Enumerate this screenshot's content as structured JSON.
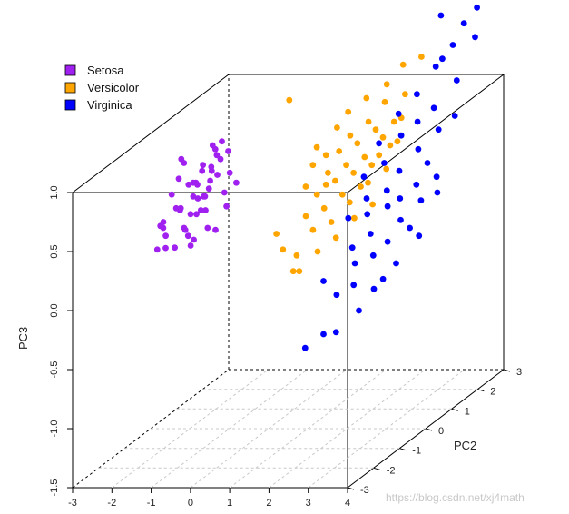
{
  "chart_data": {
    "type": "scatter",
    "projection": "3d",
    "title": "",
    "xlabel": "",
    "ylabel": "PC2",
    "zlabel": "PC3",
    "xlim": [
      -3,
      4
    ],
    "ylim": [
      -3,
      3
    ],
    "zlim": [
      -1.5,
      1.0
    ],
    "x_ticks": [
      "-3",
      "-2",
      "-1",
      "0",
      "1",
      "2",
      "3",
      "4"
    ],
    "y_ticks": [
      "-3",
      "-2",
      "-1",
      "0",
      "1",
      "2",
      "3"
    ],
    "z_ticks": [
      "-1.5",
      "-1.0",
      "-0.5",
      "0.0",
      "0.5",
      "1.0"
    ],
    "legend": [
      {
        "label": "Setosa",
        "color": "#a020f0"
      },
      {
        "label": "Versicolor",
        "color": "#ffa500"
      },
      {
        "label": "Virginica",
        "color": "#0000ff"
      }
    ],
    "series": [
      {
        "name": "Setosa",
        "color": "#a020f0",
        "points": [
          [
            -2.75,
            0.2,
            0.1
          ],
          [
            -2.68,
            0.0,
            0.2
          ],
          [
            -2.62,
            -0.2,
            0.25
          ],
          [
            -2.55,
            0.5,
            0.7
          ],
          [
            -2.5,
            -0.5,
            0.1
          ],
          [
            -2.45,
            0.3,
            0.3
          ],
          [
            -2.42,
            -0.3,
            0.08
          ],
          [
            -2.38,
            0.7,
            0.35
          ],
          [
            -2.35,
            0.1,
            0.6
          ],
          [
            -2.32,
            -0.1,
            0.05
          ],
          [
            -2.3,
            0.4,
            0.5
          ],
          [
            -2.28,
            -0.6,
            0.35
          ],
          [
            -2.25,
            0.2,
            0.15
          ],
          [
            -2.22,
            0.8,
            0.55
          ],
          [
            -2.2,
            -0.4,
            0.55
          ],
          [
            -2.18,
            0.3,
            0.0
          ],
          [
            -2.15,
            0.0,
            0.75
          ],
          [
            -2.12,
            0.6,
            0.25
          ],
          [
            -2.1,
            -0.2,
            0.4
          ],
          [
            -2.08,
            0.9,
            0.45
          ],
          [
            -2.05,
            0.1,
            0.3
          ],
          [
            -2.02,
            -0.5,
            0.45
          ],
          [
            -2.0,
            0.5,
            0.65
          ],
          [
            -1.98,
            0.2,
            0.55
          ],
          [
            -1.95,
            -0.3,
            0.25
          ],
          [
            -1.92,
            0.7,
            0.6
          ],
          [
            -1.9,
            0.0,
            0.1
          ],
          [
            -1.88,
            0.4,
            0.4
          ],
          [
            -1.85,
            -0.1,
            0.6
          ],
          [
            -1.82,
            0.6,
            0.8
          ],
          [
            -1.8,
            0.3,
            0.3
          ],
          [
            -1.78,
            -0.4,
            0.2
          ],
          [
            -1.75,
            0.8,
            0.65
          ],
          [
            -1.72,
            0.1,
            0.45
          ],
          [
            -1.7,
            -0.2,
            0.35
          ],
          [
            -1.68,
            0.5,
            0.1
          ],
          [
            -1.65,
            0.2,
            0.5
          ],
          [
            -1.62,
            0.9,
            0.7
          ],
          [
            -1.6,
            -0.3,
            0.5
          ],
          [
            -1.58,
            0.4,
            0.75
          ],
          [
            -1.55,
            0.0,
            0.2
          ],
          [
            -1.52,
            0.6,
            0.4
          ],
          [
            -1.5,
            0.3,
            0.6
          ],
          [
            -1.48,
            -0.5,
            0.65
          ],
          [
            -1.45,
            0.7,
            0.55
          ],
          [
            -1.42,
            0.1,
            0.85
          ],
          [
            -1.4,
            0.5,
            0.3
          ],
          [
            -1.38,
            -0.1,
            0.7
          ],
          [
            -1.35,
            0.8,
            0.45
          ],
          [
            -1.32,
            0.2,
            0.9
          ]
        ]
      },
      {
        "name": "Versicolor",
        "color": "#ffa500",
        "points": [
          [
            0.2,
            0.5,
            1.2
          ],
          [
            0.4,
            -0.3,
            0.2
          ],
          [
            0.5,
            0.2,
            -0.2
          ],
          [
            0.6,
            0.8,
            0.6
          ],
          [
            0.7,
            -0.5,
            0.1
          ],
          [
            0.75,
            0.3,
            0.5
          ],
          [
            0.8,
            1.0,
            0.4
          ],
          [
            0.85,
            -0.2,
            0.0
          ],
          [
            0.9,
            0.5,
            0.8
          ],
          [
            0.95,
            0.0,
            0.3
          ],
          [
            1.0,
            0.7,
            0.7
          ],
          [
            1.05,
            -0.4,
            -0.1
          ],
          [
            1.1,
            0.2,
            0.45
          ],
          [
            1.15,
            0.9,
            0.9
          ],
          [
            1.2,
            -0.1,
            0.2
          ],
          [
            1.25,
            0.4,
            0.6
          ],
          [
            1.3,
            1.1,
            1.0
          ],
          [
            1.35,
            0.1,
            0.35
          ],
          [
            1.4,
            0.6,
            0.75
          ],
          [
            1.45,
            -0.3,
            0.05
          ],
          [
            1.5,
            0.3,
            0.55
          ],
          [
            1.55,
            0.8,
            0.85
          ],
          [
            1.6,
            0.0,
            0.25
          ],
          [
            1.65,
            0.5,
            0.65
          ],
          [
            1.7,
            1.2,
            1.1
          ],
          [
            1.75,
            0.2,
            0.45
          ],
          [
            1.8,
            0.7,
            0.8
          ],
          [
            1.85,
            -0.2,
            0.15
          ],
          [
            1.9,
            0.4,
            0.6
          ],
          [
            1.95,
            0.9,
            0.95
          ],
          [
            2.0,
            0.1,
            0.4
          ],
          [
            2.05,
            0.6,
            0.7
          ],
          [
            2.1,
            1.3,
            1.05
          ],
          [
            2.15,
            0.3,
            0.5
          ],
          [
            2.2,
            0.8,
            0.9
          ],
          [
            2.25,
            -0.1,
            0.3
          ],
          [
            2.3,
            0.5,
            0.65
          ],
          [
            2.35,
            1.0,
            1.25
          ],
          [
            2.4,
            0.2,
            0.55
          ],
          [
            2.45,
            0.7,
            0.85
          ],
          [
            2.5,
            1.4,
            1.35
          ],
          [
            2.55,
            0.4,
            0.75
          ],
          [
            2.6,
            0.9,
            0.95
          ],
          [
            2.65,
            0.0,
            0.4
          ],
          [
            2.7,
            0.6,
            0.8
          ],
          [
            2.75,
            1.1,
            1.15
          ],
          [
            2.8,
            0.3,
            0.65
          ],
          [
            2.85,
            0.8,
            1.0
          ],
          [
            2.9,
            1.5,
            1.4
          ],
          [
            2.95,
            0.5,
            0.85
          ]
        ]
      },
      {
        "name": "Virginica",
        "color": "#0000ff",
        "points": [
          [
            1.2,
            -0.4,
            -0.75
          ],
          [
            1.4,
            0.0,
            -0.7
          ],
          [
            1.6,
            -0.3,
            -0.2
          ],
          [
            1.7,
            0.5,
            0.2
          ],
          [
            1.8,
            -0.1,
            -0.35
          ],
          [
            1.9,
            0.8,
            0.5
          ],
          [
            2.0,
            0.2,
            0.0
          ],
          [
            2.05,
            -0.5,
            -0.6
          ],
          [
            2.1,
            0.6,
            0.35
          ],
          [
            2.15,
            1.0,
            0.75
          ],
          [
            2.2,
            0.0,
            -0.1
          ],
          [
            2.25,
            0.4,
            0.25
          ],
          [
            2.3,
            -0.2,
            -0.25
          ],
          [
            2.35,
            0.9,
            0.6
          ],
          [
            2.4,
            0.3,
            0.1
          ],
          [
            2.45,
            1.3,
            0.95
          ],
          [
            2.5,
            -0.3,
            -0.45
          ],
          [
            2.55,
            0.7,
            0.4
          ],
          [
            2.6,
            0.1,
            -0.05
          ],
          [
            2.65,
            1.1,
            0.8
          ],
          [
            2.7,
            0.5,
            0.3
          ],
          [
            2.75,
            -0.1,
            -0.3
          ],
          [
            2.8,
            0.8,
            0.55
          ],
          [
            2.85,
            1.4,
            1.1
          ],
          [
            2.9,
            0.2,
            0.05
          ],
          [
            2.95,
            0.6,
            0.35
          ],
          [
            3.0,
            1.2,
            0.9
          ],
          [
            3.05,
            -0.2,
            -0.2
          ],
          [
            3.1,
            0.4,
            0.2
          ],
          [
            3.15,
            1.0,
            0.7
          ],
          [
            3.2,
            1.6,
            1.3
          ],
          [
            3.25,
            0.0,
            -0.1
          ],
          [
            3.3,
            0.7,
            0.45
          ],
          [
            3.35,
            1.3,
            1.0
          ],
          [
            3.4,
            0.3,
            0.15
          ],
          [
            3.45,
            0.9,
            0.6
          ],
          [
            3.5,
            1.8,
            1.45
          ],
          [
            3.55,
            0.5,
            0.35
          ],
          [
            3.6,
            1.1,
            0.85
          ],
          [
            3.65,
            2.0,
            1.6
          ],
          [
            3.7,
            0.2,
            0.1
          ],
          [
            3.75,
            0.8,
            0.5
          ],
          [
            3.8,
            1.5,
            1.2
          ],
          [
            3.85,
            2.2,
            1.7
          ],
          [
            3.9,
            0.6,
            0.4
          ],
          [
            3.95,
            1.2,
            0.95
          ],
          [
            4.0,
            1.9,
            1.5
          ],
          [
            3.6,
            2.3,
            1.8
          ],
          [
            3.3,
            1.7,
            1.35
          ],
          [
            3.0,
            2.1,
            1.65
          ]
        ]
      }
    ]
  },
  "watermark": "https://blog.csdn.net/xj4math"
}
